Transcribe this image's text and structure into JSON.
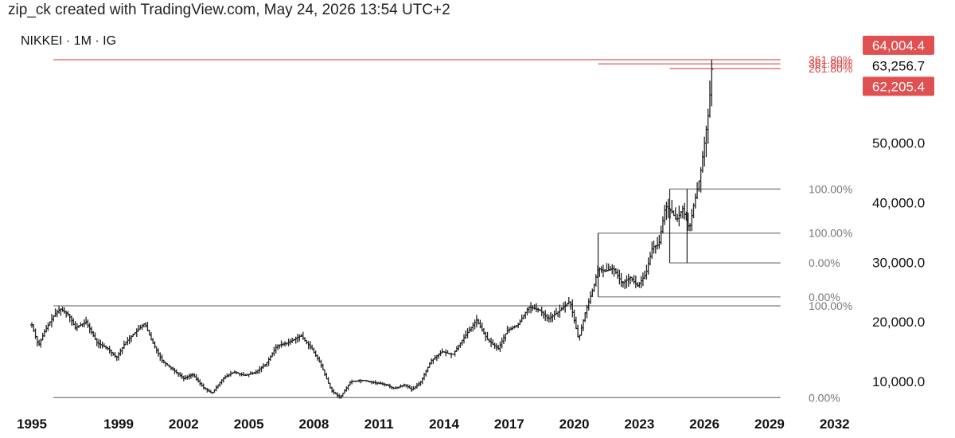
{
  "header": {
    "text": "zip_ck created with TradingView.com, May 24, 2026 13:54 UTC+2"
  },
  "symbol_line": "NIKKEI · 1M · IG",
  "colors": {
    "candle": "#222222",
    "fib_gray": "#777777",
    "fib_red": "#d94a4a",
    "tag_red": "#e05050"
  },
  "chart_data": {
    "type": "ohlc",
    "title": "NIKKEI · 1M · IG",
    "x_tick_labels": [
      "1995",
      "1999",
      "2002",
      "2005",
      "2008",
      "2011",
      "2014",
      "2017",
      "2020",
      "2023",
      "2026",
      "2029",
      "2032"
    ],
    "y_tick_labels": [
      "10,000.0",
      "20,000.0",
      "30,000.0",
      "40,000.0",
      "50,000.0"
    ],
    "y_ticks": [
      10000,
      20000,
      30000,
      40000,
      50000
    ],
    "xlim": [
      1995.0,
      2033.0
    ],
    "ylim": [
      7200,
      66000
    ],
    "price_tags": [
      {
        "value": 64004.4,
        "label": "64,004.4",
        "style": "red"
      },
      {
        "value": 63256.7,
        "label": "63,256.7",
        "style": "plain"
      },
      {
        "value": 62205.4,
        "label": "62,205.4",
        "style": "red"
      }
    ],
    "fib_levels": [
      {
        "label": "0.00%",
        "price": 7300,
        "x_start": 1996.0,
        "x_end": 2029.5,
        "color": "gray"
      },
      {
        "label": "100.00%",
        "price": 22700,
        "x_start": 1996.0,
        "x_end": 2029.5,
        "color": "gray"
      },
      {
        "label": "361.80%",
        "price": 64004.4,
        "x_start": 1996.0,
        "x_end": 2029.5,
        "color": "red"
      },
      {
        "label": "0.00%",
        "price": 24200,
        "x_start": 2021.1,
        "x_end": 2029.5,
        "color": "gray"
      },
      {
        "label": "100.00%",
        "price": 34900,
        "x_start": 2021.1,
        "x_end": 2029.5,
        "color": "gray"
      },
      {
        "label": "361.80%",
        "price": 63300,
        "x_start": 2021.1,
        "x_end": 2029.5,
        "color": "red"
      },
      {
        "label": "0.00%",
        "price": 29900,
        "x_start": 2024.4,
        "x_end": 2029.5,
        "color": "gray"
      },
      {
        "label": "100.00%",
        "price": 42300,
        "x_start": 2024.4,
        "x_end": 2029.5,
        "color": "gray"
      },
      {
        "label": "261.80%",
        "price": 62500,
        "x_start": 2024.4,
        "x_end": 2029.5,
        "color": "red"
      }
    ],
    "verticals": [
      {
        "x": 2021.1,
        "from": 24200,
        "to": 34900
      },
      {
        "x": 2024.4,
        "from": 29900,
        "to": 42300
      },
      {
        "x": 2025.2,
        "from": 29900,
        "to": 42300
      }
    ],
    "anchor_points": [
      [
        1995.0,
        19500
      ],
      [
        1995.3,
        16000
      ],
      [
        1995.6,
        18500
      ],
      [
        1996.0,
        21000
      ],
      [
        1996.3,
        22200
      ],
      [
        1996.7,
        21200
      ],
      [
        1997.0,
        19000
      ],
      [
        1997.5,
        20000
      ],
      [
        1998.0,
        16500
      ],
      [
        1998.5,
        15500
      ],
      [
        1998.9,
        14000
      ],
      [
        1999.3,
        16500
      ],
      [
        1999.7,
        18000
      ],
      [
        2000.2,
        19800
      ],
      [
        2000.5,
        17000
      ],
      [
        2001.0,
        13500
      ],
      [
        2001.5,
        12000
      ],
      [
        2002.0,
        10500
      ],
      [
        2002.4,
        11200
      ],
      [
        2002.9,
        9000
      ],
      [
        2003.3,
        8000
      ],
      [
        2003.8,
        10500
      ],
      [
        2004.3,
        11600
      ],
      [
        2004.8,
        11000
      ],
      [
        2005.3,
        11500
      ],
      [
        2005.8,
        13000
      ],
      [
        2006.3,
        16000
      ],
      [
        2006.8,
        16500
      ],
      [
        2007.4,
        17700
      ],
      [
        2007.9,
        15500
      ],
      [
        2008.3,
        13000
      ],
      [
        2008.8,
        8500
      ],
      [
        2009.2,
        7300
      ],
      [
        2009.7,
        10000
      ],
      [
        2010.3,
        10200
      ],
      [
        2010.8,
        9800
      ],
      [
        2011.3,
        9500
      ],
      [
        2011.7,
        8800
      ],
      [
        2012.2,
        9500
      ],
      [
        2012.5,
        8600
      ],
      [
        2012.9,
        9800
      ],
      [
        2013.4,
        13500
      ],
      [
        2013.9,
        15000
      ],
      [
        2014.4,
        14500
      ],
      [
        2014.9,
        17300
      ],
      [
        2015.5,
        20300
      ],
      [
        2016.0,
        17000
      ],
      [
        2016.5,
        15500
      ],
      [
        2016.9,
        18500
      ],
      [
        2017.4,
        19500
      ],
      [
        2017.9,
        22500
      ],
      [
        2018.4,
        22000
      ],
      [
        2018.8,
        20500
      ],
      [
        2019.2,
        21500
      ],
      [
        2019.8,
        23500
      ],
      [
        2020.2,
        17000
      ],
      [
        2020.5,
        21500
      ],
      [
        2020.9,
        26000
      ],
      [
        2021.1,
        29000
      ],
      [
        2021.4,
        28500
      ],
      [
        2021.8,
        29000
      ],
      [
        2022.2,
        26500
      ],
      [
        2022.6,
        27500
      ],
      [
        2022.9,
        26000
      ],
      [
        2023.3,
        28000
      ],
      [
        2023.6,
        32500
      ],
      [
        2023.9,
        33000
      ],
      [
        2024.2,
        39500
      ],
      [
        2024.5,
        38500
      ],
      [
        2024.7,
        37000
      ],
      [
        2025.0,
        39000
      ],
      [
        2025.3,
        35500
      ],
      [
        2025.5,
        39500
      ],
      [
        2025.8,
        44500
      ],
      [
        2026.0,
        50000
      ],
      [
        2026.2,
        55500
      ],
      [
        2026.35,
        63256.7
      ]
    ]
  }
}
